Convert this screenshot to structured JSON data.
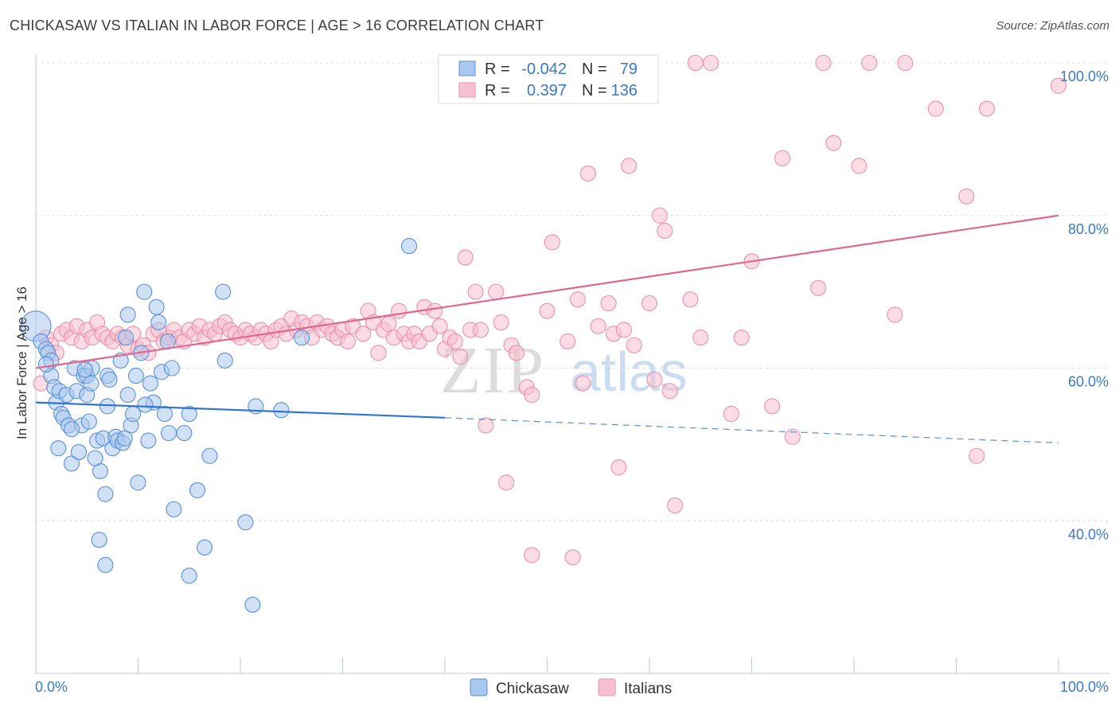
{
  "header": {
    "title": "CHICKASAW VS ITALIAN IN LABOR FORCE | AGE > 16 CORRELATION CHART",
    "source": "Source: ZipAtlas.com"
  },
  "watermark": {
    "zip": "ZIP",
    "atlas": "atlas"
  },
  "legend": {
    "rows": [
      {
        "r_label": "R =",
        "r_value": "-0.042",
        "n_label": "N =",
        "n_value": "79"
      },
      {
        "r_label": "R =",
        "r_value": "0.397",
        "n_label": "N =",
        "n_value": "136"
      }
    ]
  },
  "bottom_legend": {
    "series1": "Chickasaw",
    "series2": "Italians"
  },
  "colors": {
    "chickasaw_fill": "#a9c8ef",
    "chickasaw_stroke": "#5b8fd6",
    "chickasaw_line": "#2f74d0",
    "italian_fill": "#f7c0d0",
    "italian_stroke": "#e891ad",
    "italian_line": "#e0688f",
    "grid": "#d9dde3",
    "tick_text": "#3a78c9"
  },
  "chart_data": {
    "type": "scatter",
    "title": "CHICKASAW VS ITALIAN IN LABOR FORCE | AGE > 16 CORRELATION CHART",
    "xlabel": "",
    "ylabel": "In Labor Force | Age > 16",
    "xlim": [
      0,
      100
    ],
    "ylim": [
      20,
      100
    ],
    "x_tick_labels": [
      "0.0%",
      "100.0%"
    ],
    "y_ticks": [
      40,
      60,
      80,
      100
    ],
    "y_tick_labels": [
      "40.0%",
      "60.0%",
      "80.0%",
      "100.0%"
    ],
    "grid": true,
    "legend_position": "top-center",
    "series": [
      {
        "name": "Chickasaw",
        "R": -0.042,
        "N": 79,
        "trend": {
          "x0": 0,
          "y0": 55.5,
          "x1": 40,
          "y1": 53.5,
          "dash_to_x": 100,
          "dash_to_y": 50.2
        },
        "points": [
          [
            0,
            65.5
          ],
          [
            0.5,
            63.5
          ],
          [
            1,
            62.5
          ],
          [
            1.2,
            62
          ],
          [
            1.5,
            61
          ],
          [
            1.5,
            59
          ],
          [
            1.8,
            57.5
          ],
          [
            2,
            55.5
          ],
          [
            2.3,
            57
          ],
          [
            2.5,
            54
          ],
          [
            2.7,
            53.5
          ],
          [
            3,
            56.5
          ],
          [
            3.2,
            52.5
          ],
          [
            3.5,
            47.5
          ],
          [
            3.8,
            60
          ],
          [
            4,
            57
          ],
          [
            4.2,
            49
          ],
          [
            4.5,
            52.5
          ],
          [
            4.7,
            59
          ],
          [
            5,
            59
          ],
          [
            5,
            56.5
          ],
          [
            5.2,
            53
          ],
          [
            5.4,
            58
          ],
          [
            5.5,
            60
          ],
          [
            2.2,
            49.5
          ],
          [
            6,
            50.5
          ],
          [
            6.3,
            46.5
          ],
          [
            6.6,
            50.8
          ],
          [
            6.8,
            43.5
          ],
          [
            7,
            59
          ],
          [
            7,
            55
          ],
          [
            7.5,
            49.5
          ],
          [
            7.8,
            51
          ],
          [
            8,
            50.5
          ],
          [
            8.3,
            61
          ],
          [
            8.5,
            50.2
          ],
          [
            8.8,
            64
          ],
          [
            9,
            67
          ],
          [
            9,
            56.5
          ],
          [
            9.3,
            52.5
          ],
          [
            9.5,
            54
          ],
          [
            9.8,
            59
          ],
          [
            10,
            45
          ],
          [
            10.3,
            62
          ],
          [
            10.6,
            70
          ],
          [
            11,
            50.5
          ],
          [
            11.2,
            58
          ],
          [
            11.5,
            55.5
          ],
          [
            11.8,
            68
          ],
          [
            12,
            66
          ],
          [
            12.3,
            59.5
          ],
          [
            12.6,
            54
          ],
          [
            13,
            51.5
          ],
          [
            13.3,
            60
          ],
          [
            13.5,
            41.5
          ],
          [
            14.5,
            51.5
          ],
          [
            15,
            54
          ],
          [
            15.8,
            44
          ],
          [
            16.5,
            36.5
          ],
          [
            17,
            48.5
          ],
          [
            18.3,
            70
          ],
          [
            18.5,
            61
          ],
          [
            20.5,
            39.8
          ],
          [
            21.2,
            29
          ],
          [
            21.5,
            55
          ],
          [
            24,
            54.5
          ],
          [
            26,
            64
          ],
          [
            36.5,
            76
          ],
          [
            6.2,
            37.5
          ],
          [
            6.8,
            34.2
          ],
          [
            15,
            32.8
          ],
          [
            1,
            60.5
          ],
          [
            3.5,
            52
          ],
          [
            4.8,
            59.8
          ],
          [
            7.2,
            58.5
          ],
          [
            8.7,
            50.8
          ],
          [
            5.8,
            48.2
          ],
          [
            10.7,
            55.2
          ],
          [
            12.9,
            63.5
          ]
        ]
      },
      {
        "name": "Italians",
        "R": 0.397,
        "N": 136,
        "trend": {
          "x0": 0,
          "y0": 60,
          "x1": 100,
          "y1": 80
        },
        "points": [
          [
            0.5,
            58
          ],
          [
            1,
            64
          ],
          [
            1.5,
            63
          ],
          [
            2,
            62
          ],
          [
            2.5,
            64.5
          ],
          [
            3,
            65
          ],
          [
            3.5,
            64
          ],
          [
            4,
            65.5
          ],
          [
            4.5,
            63.5
          ],
          [
            5,
            65
          ],
          [
            5.5,
            64
          ],
          [
            6,
            66
          ],
          [
            6.5,
            64.5
          ],
          [
            7,
            64
          ],
          [
            7.5,
            63.5
          ],
          [
            8,
            64.5
          ],
          [
            8.5,
            64
          ],
          [
            9,
            63
          ],
          [
            9.5,
            64.5
          ],
          [
            10,
            62.5
          ],
          [
            10.5,
            63
          ],
          [
            11,
            62
          ],
          [
            11.5,
            64.5
          ],
          [
            12,
            65
          ],
          [
            12.5,
            63.5
          ],
          [
            13,
            64
          ],
          [
            13.5,
            65
          ],
          [
            14,
            64
          ],
          [
            14.5,
            63.5
          ],
          [
            15,
            65
          ],
          [
            15.5,
            64.5
          ],
          [
            16,
            65.5
          ],
          [
            16.5,
            64
          ],
          [
            17,
            65
          ],
          [
            17.5,
            64.5
          ],
          [
            18,
            65.5
          ],
          [
            18.5,
            66
          ],
          [
            19,
            65
          ],
          [
            19.5,
            64.5
          ],
          [
            20,
            64
          ],
          [
            20.5,
            65
          ],
          [
            21,
            64.5
          ],
          [
            21.5,
            64
          ],
          [
            22,
            65
          ],
          [
            22.5,
            64.5
          ],
          [
            23,
            63.5
          ],
          [
            23.5,
            65
          ],
          [
            24,
            65.5
          ],
          [
            24.5,
            64.5
          ],
          [
            25,
            66.5
          ],
          [
            25.5,
            65
          ],
          [
            26,
            66
          ],
          [
            26.5,
            65.5
          ],
          [
            27,
            64
          ],
          [
            27.5,
            66
          ],
          [
            28,
            65
          ],
          [
            28.5,
            65.5
          ],
          [
            29,
            64.5
          ],
          [
            29.5,
            64
          ],
          [
            30,
            65
          ],
          [
            30.5,
            63.5
          ],
          [
            31,
            65.5
          ],
          [
            32,
            64.5
          ],
          [
            32.5,
            67.5
          ],
          [
            33,
            66
          ],
          [
            33.5,
            62
          ],
          [
            34,
            65
          ],
          [
            34.5,
            65.8
          ],
          [
            35,
            64
          ],
          [
            35.5,
            67.5
          ],
          [
            36,
            64.5
          ],
          [
            36.5,
            63.5
          ],
          [
            37,
            64.5
          ],
          [
            37.5,
            63.5
          ],
          [
            38,
            68
          ],
          [
            38.5,
            64.5
          ],
          [
            39,
            67.5
          ],
          [
            39.5,
            65.5
          ],
          [
            40,
            62.5
          ],
          [
            40.5,
            64
          ],
          [
            41,
            63.5
          ],
          [
            41.5,
            61.5
          ],
          [
            42,
            74.5
          ],
          [
            42.5,
            65
          ],
          [
            43,
            70
          ],
          [
            43.5,
            65
          ],
          [
            44,
            52.5
          ],
          [
            45,
            70
          ],
          [
            45.5,
            66
          ],
          [
            46,
            45
          ],
          [
            46.5,
            63
          ],
          [
            47,
            62
          ],
          [
            48,
            57.5
          ],
          [
            48.5,
            56.5
          ],
          [
            48.5,
            35.5
          ],
          [
            50,
            67.5
          ],
          [
            50.5,
            76.5
          ],
          [
            52,
            63.5
          ],
          [
            52.5,
            35.2
          ],
          [
            53,
            69
          ],
          [
            53.5,
            58
          ],
          [
            54,
            85.5
          ],
          [
            55,
            65.5
          ],
          [
            56,
            68.5
          ],
          [
            56.5,
            64.5
          ],
          [
            57,
            47
          ],
          [
            57.5,
            65
          ],
          [
            58,
            86.5
          ],
          [
            58.5,
            63
          ],
          [
            60,
            68.5
          ],
          [
            60.5,
            58.5
          ],
          [
            61,
            80
          ],
          [
            61.5,
            78
          ],
          [
            62,
            57
          ],
          [
            62.5,
            42
          ],
          [
            64,
            69
          ],
          [
            64.5,
            100
          ],
          [
            65,
            64
          ],
          [
            66,
            100
          ],
          [
            68,
            54
          ],
          [
            69,
            64
          ],
          [
            70,
            74
          ],
          [
            72,
            55
          ],
          [
            73,
            87.5
          ],
          [
            74,
            51
          ],
          [
            76.5,
            70.5
          ],
          [
            77,
            100
          ],
          [
            78,
            89.5
          ],
          [
            80.5,
            86.5
          ],
          [
            81.5,
            100
          ],
          [
            84,
            67
          ],
          [
            85,
            100
          ],
          [
            88,
            94
          ],
          [
            91,
            82.5
          ],
          [
            92,
            48.5
          ],
          [
            93,
            94
          ],
          [
            100,
            97
          ]
        ]
      }
    ]
  }
}
